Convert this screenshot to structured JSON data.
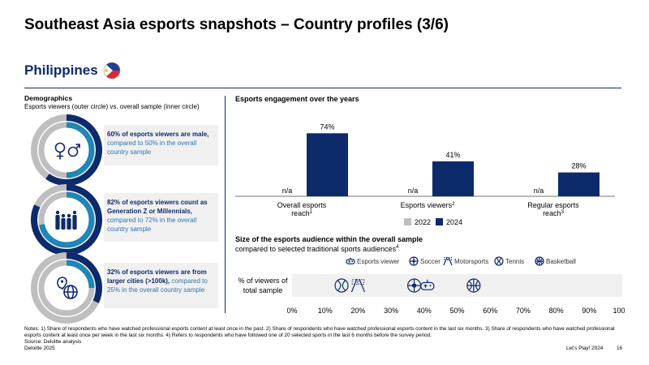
{
  "title": "Southeast Asia esports snapshots – Country profiles (3/6)",
  "country": "Philippines",
  "demographics": {
    "heading": "Demographics",
    "subheading": "Esports viewers (outer circle) vs. overall sample (inner circle)",
    "items": [
      {
        "icon": "gender-icon",
        "outer_pct": 60,
        "inner_pct": 50,
        "bold": "60% of esports viewers are male,",
        "rest": " compared to 50% in the overall country sample"
      },
      {
        "icon": "family-icon",
        "outer_pct": 82,
        "inner_pct": 72,
        "bold": "82% of esports viewers count as Generation Z or Millennials,",
        "rest": " compared to 72% in the overall country sample"
      },
      {
        "icon": "globe-pin-icon",
        "outer_pct": 32,
        "inner_pct": 25,
        "bold": "32% of esports viewers are from larger cities (>100k),",
        "rest": " compared to 25% in the overall country sample"
      }
    ]
  },
  "colors": {
    "navy": "#0d2a6b",
    "teal": "#1f86b5",
    "gray": "#bfbfbf",
    "light": "#f0f0f0"
  },
  "chart_data": [
    {
      "type": "bar",
      "title": "Esports engagement over the years",
      "categories": [
        "Overall esports reach",
        "Esports viewers",
        "Regular esports reach"
      ],
      "footnote_marks": [
        "1",
        "2",
        "3"
      ],
      "series": [
        {
          "name": "2022",
          "values": [
            null,
            null,
            null
          ],
          "labels": [
            "n/a",
            "n/a",
            "n/a"
          ]
        },
        {
          "name": "2024",
          "values": [
            74,
            41,
            28
          ],
          "labels": [
            "74%",
            "41%",
            "28%"
          ]
        }
      ],
      "ylim": [
        0,
        80
      ],
      "legend": "bottom"
    },
    {
      "type": "scatter",
      "title": "Size of the esports audience within the overall sample",
      "subtitle": "compared to selected traditional sports audiences",
      "subtitle_mark": "4",
      "ylabel": "% of viewers of total sample",
      "xlim": [
        0,
        100
      ],
      "xticks": [
        "0%",
        "10%",
        "20%",
        "30%",
        "40%",
        "50%",
        "60%",
        "70%",
        "80%",
        "90%",
        "100%"
      ],
      "legend": "top",
      "series": [
        {
          "name": "Esports viewer",
          "icon": "gamepad-icon",
          "x": 41
        },
        {
          "name": "Soccer",
          "icon": "soccer-ball-icon",
          "x": 37
        },
        {
          "name": "Motorsports",
          "icon": "racing-flag-icon",
          "x": 20
        },
        {
          "name": "Tennis",
          "icon": "tennis-ball-icon",
          "x": 15
        },
        {
          "name": "Basketball",
          "icon": "basketball-icon",
          "x": 55
        }
      ]
    }
  ],
  "notes": "Notes: 1) Share of respondents who have watched professional esports content at least once in the past. 2) Share of respondents who have watched professional esports content in the last six months. 3) Share of respondents who have watched professional esports content at least once per week in the last six months. 4) Refers to respondents who have followed one of 20 selected sports in the last 6 months before the survey period.",
  "source": "Source: Deloitte analysis",
  "footer_left": "Deloitte 2025",
  "footer_right": "Let’s Play! 2024",
  "page_number": "16"
}
